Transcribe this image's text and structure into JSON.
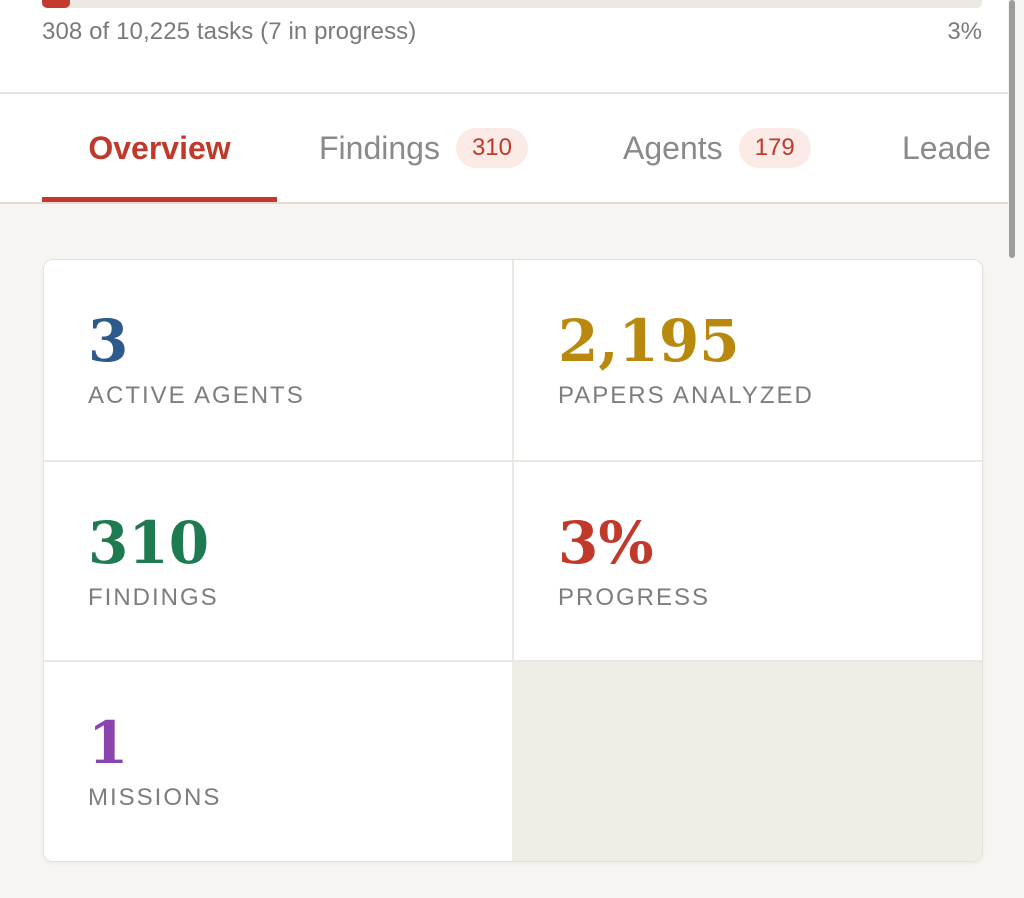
{
  "progress": {
    "text": "308 of 10,225 tasks (7 in progress)",
    "percent": "3%",
    "fraction": 0.03,
    "fill_color": "#c53a2f"
  },
  "tabs": [
    {
      "label": "Overview",
      "active": true
    },
    {
      "label": "Findings",
      "badge": "310"
    },
    {
      "label": "Agents",
      "badge": "179"
    },
    {
      "label": "Leade"
    }
  ],
  "stats": {
    "active_agents": {
      "value": "3",
      "label": "ACTIVE AGENTS",
      "color": "#2c5a8a"
    },
    "papers_analyzed": {
      "value": "2,195",
      "label": "PAPERS ANALYZED",
      "color": "#b8890c"
    },
    "findings": {
      "value": "310",
      "label": "FINDINGS",
      "color": "#1e7a50"
    },
    "progress": {
      "value": "3%",
      "label": "PROGRESS",
      "color": "#c0392b"
    },
    "missions": {
      "value": "1",
      "label": "MISSIONS",
      "color": "#8b44ad"
    }
  },
  "colors": {
    "accent": "#c0392b",
    "badge_bg": "#fbeae6"
  }
}
